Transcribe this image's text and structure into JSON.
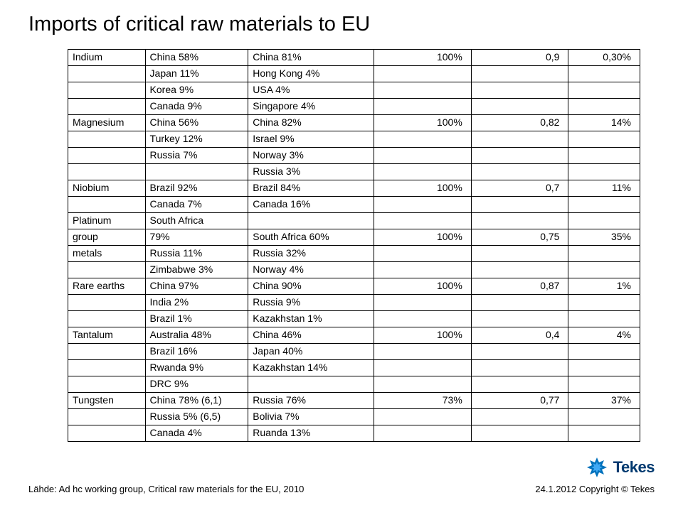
{
  "title": "Imports of critical raw materials to EU",
  "source": "Lähde: Ad hc working group, Critical raw materials for the EU, 2010",
  "copyright": "24.1.2012 Copyright © Tekes",
  "logo_text": "Tekes",
  "table": {
    "rows": [
      [
        "Indium",
        "China 58%",
        "China 81%",
        "100%",
        "0,9",
        "0,30%"
      ],
      [
        "",
        "Japan 11%",
        "Hong Kong 4%",
        "",
        "",
        ""
      ],
      [
        "",
        "Korea 9%",
        "USA 4%",
        "",
        "",
        ""
      ],
      [
        "",
        "Canada 9%",
        "Singapore 4%",
        "",
        "",
        ""
      ],
      [
        "Magnesium",
        "China 56%",
        "China 82%",
        "100%",
        "0,82",
        "14%"
      ],
      [
        "",
        "Turkey 12%",
        "Israel 9%",
        "",
        "",
        ""
      ],
      [
        "",
        "Russia 7%",
        "Norway 3%",
        "",
        "",
        ""
      ],
      [
        "",
        "",
        "Russia 3%",
        "",
        "",
        ""
      ],
      [
        "Niobium",
        "Brazil 92%",
        "Brazil 84%",
        "100%",
        "0,7",
        "11%"
      ],
      [
        "",
        "Canada 7%",
        "Canada 16%",
        "",
        "",
        ""
      ],
      [
        "Platinum",
        "South Africa",
        "",
        "",
        "",
        ""
      ],
      [
        "group",
        "79%",
        "South Africa 60%",
        "100%",
        "0,75",
        "35%"
      ],
      [
        "metals",
        "Russia 11%",
        "Russia 32%",
        "",
        "",
        ""
      ],
      [
        "",
        "Zimbabwe 3%",
        "Norway 4%",
        "",
        "",
        ""
      ],
      [
        "Rare earths",
        "China 97%",
        "China 90%",
        "100%",
        "0,87",
        "1%"
      ],
      [
        "",
        "India 2%",
        "Russia 9%",
        "",
        "",
        ""
      ],
      [
        "",
        "Brazil 1%",
        "Kazakhstan 1%",
        "",
        "",
        ""
      ],
      [
        "Tantalum",
        "Australia 48%",
        "China 46%",
        "100%",
        "0,4",
        "4%"
      ],
      [
        "",
        "Brazil 16%",
        "Japan 40%",
        "",
        "",
        ""
      ],
      [
        "",
        "Rwanda 9%",
        "Kazakhstan 14%",
        "",
        "",
        ""
      ],
      [
        "",
        "DRC 9%",
        "",
        "",
        "",
        ""
      ],
      [
        "Tungsten",
        "China 78% (6,1)",
        "Russia 76%",
        "73%",
        "0,77",
        "37%"
      ],
      [
        "",
        "Russia 5% (6,5)",
        "Bolivia 7%",
        "",
        "",
        ""
      ],
      [
        "",
        "Canada 4%",
        "Ruanda 13%",
        "",
        "",
        ""
      ]
    ]
  },
  "colors": {
    "logo_light": "#3fa9f5",
    "logo_mid": "#0071bc",
    "logo_dark": "#003a70"
  }
}
